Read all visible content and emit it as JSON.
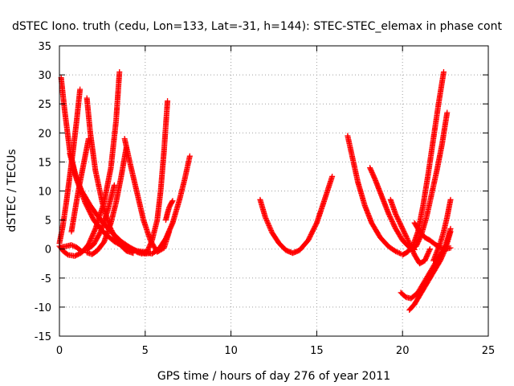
{
  "chart_data": {
    "type": "scatter",
    "title": "dSTEC Iono. truth (cedu, Lon=133, Lat=-31, h=144): STEC-STEC_elemax in phase cont",
    "xlabel": "GPS time / hours of day 276 of year 2011",
    "ylabel": "dSTEC  / TECUs",
    "xlim": [
      0,
      25
    ],
    "ylim": [
      -15,
      35
    ],
    "x_ticks": [
      0,
      5,
      10,
      15,
      20,
      25
    ],
    "y_ticks": [
      -15,
      -10,
      -5,
      0,
      5,
      10,
      15,
      20,
      25,
      30,
      35
    ],
    "x_tick_labels": [
      "0",
      "5",
      "10",
      "15",
      "20",
      "25"
    ],
    "y_tick_labels": [
      "-15",
      "-10",
      "-5",
      "0",
      "5",
      "10",
      "15",
      "20",
      "25",
      "30",
      "35"
    ],
    "grid": true,
    "marker": "+",
    "color": "#ff0000",
    "series": [
      {
        "x": [
          0.0,
          0.2,
          0.5,
          0.9,
          1.3,
          1.7,
          2.1,
          2.6,
          3.0,
          3.3,
          3.5
        ],
        "y": [
          0.5,
          -0.3,
          -1.0,
          -1.2,
          -0.6,
          0.8,
          3.5,
          8.0,
          14.0,
          22.0,
          30.5
        ]
      },
      {
        "x": [
          0.1,
          0.3,
          0.6,
          1.0,
          1.5,
          2.0,
          2.6,
          3.2,
          3.8,
          4.3,
          4.7,
          5.0
        ],
        "y": [
          29.5,
          24.0,
          17.0,
          12.0,
          8.0,
          5.0,
          2.8,
          1.3,
          0.3,
          -0.2,
          -0.4,
          -0.5
        ]
      },
      {
        "x": [
          0.0,
          0.2,
          0.4,
          0.6,
          0.8,
          1.0,
          1.2
        ],
        "y": [
          1.0,
          4.0,
          8.0,
          12.5,
          17.0,
          22.0,
          27.5
        ]
      },
      {
        "x": [
          0.6,
          0.9,
          1.3,
          1.8,
          2.4,
          3.0,
          3.6,
          4.1,
          4.6,
          5.0,
          5.3
        ],
        "y": [
          16.5,
          13.0,
          10.0,
          7.5,
          5.0,
          3.0,
          1.3,
          0.3,
          -0.5,
          -0.8,
          -0.7
        ]
      },
      {
        "x": [
          0.1,
          0.4,
          0.7,
          1.0,
          1.3,
          1.6,
          2.0,
          2.4,
          2.8,
          3.2
        ],
        "y": [
          0.3,
          0.5,
          0.7,
          0.3,
          -0.4,
          -0.1,
          0.8,
          3.0,
          6.5,
          11.0
        ]
      },
      {
        "x": [
          0.7,
          0.9,
          1.1,
          1.3,
          1.5,
          1.7
        ],
        "y": [
          3.0,
          6.5,
          10.0,
          13.0,
          16.0,
          19.0
        ]
      },
      {
        "x": [
          1.6,
          1.8,
          2.1,
          2.5,
          2.9,
          3.4,
          3.9,
          4.3
        ],
        "y": [
          26.0,
          20.0,
          13.5,
          8.0,
          4.0,
          1.2,
          -0.3,
          -0.7
        ]
      },
      {
        "x": [
          1.6,
          1.9,
          2.2,
          2.6,
          3.0,
          3.3,
          3.6,
          3.9
        ],
        "y": [
          -0.6,
          -0.9,
          -0.3,
          1.2,
          4.5,
          8.0,
          12.5,
          17.5
        ]
      },
      {
        "x": [
          3.8,
          4.1,
          4.5,
          4.9,
          5.3,
          5.7,
          6.1,
          6.4
        ],
        "y": [
          19.0,
          15.0,
          10.0,
          5.0,
          1.5,
          -0.5,
          0.2,
          3.0
        ]
      },
      {
        "x": [
          4.5,
          4.8,
          5.1,
          5.4,
          5.7,
          5.9,
          6.1,
          6.3
        ],
        "y": [
          -0.5,
          -0.8,
          -0.5,
          1.5,
          5.0,
          10.0,
          17.0,
          25.5
        ]
      },
      {
        "x": [
          5.0,
          5.4,
          5.8,
          6.2,
          6.6,
          7.0,
          7.3,
          7.6
        ],
        "y": [
          -0.6,
          -0.8,
          0.0,
          1.8,
          4.5,
          8.5,
          12.0,
          16.0
        ]
      },
      {
        "x": [
          6.2,
          6.3,
          6.4,
          6.5,
          6.6
        ],
        "y": [
          5.0,
          6.2,
          7.2,
          7.8,
          8.3
        ]
      },
      {
        "x": [
          11.7,
          12.0,
          12.4,
          12.8,
          13.2,
          13.6,
          14.0,
          14.5,
          15.0,
          15.4,
          15.9
        ],
        "y": [
          8.5,
          5.5,
          2.8,
          1.0,
          -0.2,
          -0.7,
          -0.2,
          1.5,
          4.5,
          8.0,
          12.5
        ]
      },
      {
        "x": [
          16.8,
          17.1,
          17.4,
          17.8,
          18.2,
          18.7,
          19.2,
          19.6,
          19.9
        ],
        "y": [
          19.5,
          15.5,
          11.5,
          7.5,
          4.5,
          2.0,
          0.4,
          -0.4,
          -0.8
        ]
      },
      {
        "x": [
          18.1,
          18.4,
          18.8,
          19.2,
          19.6,
          20.0,
          20.4,
          20.7
        ],
        "y": [
          14.0,
          12.0,
          9.0,
          6.0,
          3.5,
          1.5,
          0.3,
          -0.1
        ]
      },
      {
        "x": [
          19.3,
          19.6,
          20.0,
          20.4,
          20.7,
          21.0,
          21.3,
          21.6
        ],
        "y": [
          8.5,
          6.0,
          3.5,
          1.0,
          -1.0,
          -2.5,
          -2.0,
          0.0
        ]
      },
      {
        "x": [
          20.0,
          20.3,
          20.6,
          20.9,
          21.2,
          21.5,
          21.8,
          22.1,
          22.4
        ],
        "y": [
          -1.0,
          -0.5,
          0.5,
          3.0,
          7.5,
          13.0,
          19.0,
          25.0,
          30.5
        ]
      },
      {
        "x": [
          20.5,
          20.8,
          21.1,
          21.4,
          21.7,
          22.0,
          22.3,
          22.6
        ],
        "y": [
          0.0,
          0.5,
          2.5,
          5.5,
          9.5,
          13.5,
          18.0,
          23.5
        ]
      },
      {
        "x": [
          19.9,
          20.2,
          20.5,
          20.9,
          21.3,
          21.7,
          22.1,
          22.5,
          22.8
        ],
        "y": [
          -7.5,
          -8.3,
          -8.5,
          -7.5,
          -5.5,
          -3.5,
          -1.5,
          0.5,
          3.5
        ]
      },
      {
        "x": [
          20.4,
          20.7,
          21.0,
          21.3,
          21.6,
          21.9,
          22.2,
          22.5,
          22.8
        ],
        "y": [
          -10.5,
          -9.5,
          -8.0,
          -6.5,
          -5.0,
          -3.5,
          -2.0,
          0.0,
          3.0
        ]
      },
      {
        "x": [
          20.7,
          21.0,
          21.3,
          21.6,
          21.9,
          22.2,
          22.5,
          22.8
        ],
        "y": [
          4.5,
          3.0,
          2.0,
          1.5,
          0.8,
          0.3,
          0.0,
          0.2
        ]
      },
      {
        "x": [
          21.8,
          22.0,
          22.2,
          22.4,
          22.6,
          22.8
        ],
        "y": [
          -2.0,
          -0.5,
          1.0,
          3.0,
          5.5,
          8.5
        ]
      }
    ]
  }
}
